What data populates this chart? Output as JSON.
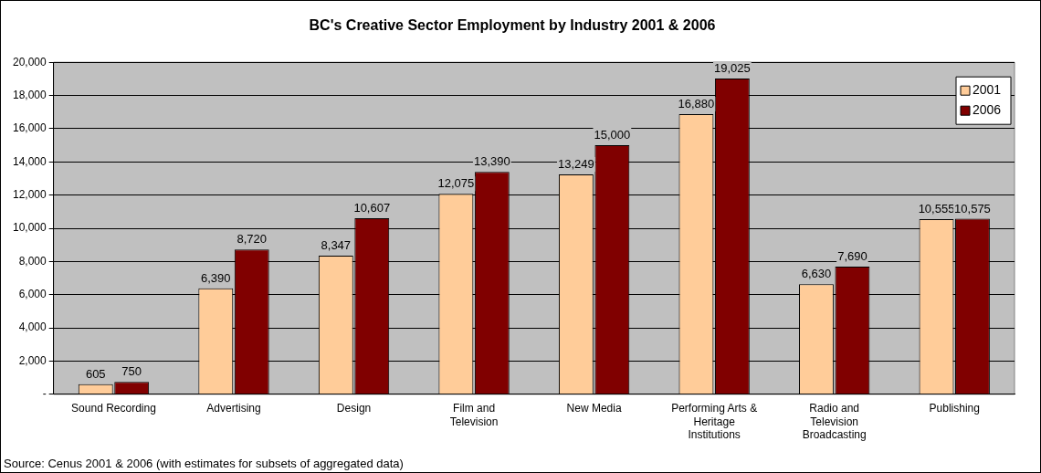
{
  "chart_data": {
    "type": "bar",
    "title": "BC's Creative Sector Employment by Industry 2001 & 2006",
    "categories": [
      "Sound Recording",
      "Advertising",
      "Design",
      "Film and Television",
      "New Media",
      "Performing Arts & Heritage Institutions",
      "Radio and Television Broadcasting",
      "Publishing"
    ],
    "series": [
      {
        "name": "2001",
        "color": "#ffcc99",
        "values": [
          605,
          6390,
          8347,
          12075,
          13249,
          16880,
          6630,
          10555
        ],
        "value_labels": [
          "605",
          "6,390",
          "8,347",
          "12,075",
          "13,249",
          "16,880",
          "6,630",
          "10,555"
        ]
      },
      {
        "name": "2006",
        "color": "#800000",
        "values": [
          750,
          8720,
          10607,
          13390,
          15000,
          19025,
          7690,
          10575
        ],
        "value_labels": [
          "750",
          "8,720",
          "10,607",
          "13,390",
          "15,000",
          "19,025",
          "7,690",
          "10,575"
        ]
      }
    ],
    "ylim": [
      0,
      20000
    ],
    "yticks": [
      {
        "value": 0,
        "label": "-"
      },
      {
        "value": 2000,
        "label": "2,000"
      },
      {
        "value": 4000,
        "label": "4,000"
      },
      {
        "value": 6000,
        "label": "6,000"
      },
      {
        "value": 8000,
        "label": "8,000"
      },
      {
        "value": 10000,
        "label": "10,000"
      },
      {
        "value": 12000,
        "label": "12,000"
      },
      {
        "value": 14000,
        "label": "14,000"
      },
      {
        "value": 16000,
        "label": "16,000"
      },
      {
        "value": 18000,
        "label": "18,000"
      },
      {
        "value": 20000,
        "label": "20,000"
      }
    ],
    "grid": "y",
    "legend": "top right",
    "annotations": [
      "Source: Cenus 2001 & 2006 (with estimates for subsets of aggregated data)"
    ]
  }
}
